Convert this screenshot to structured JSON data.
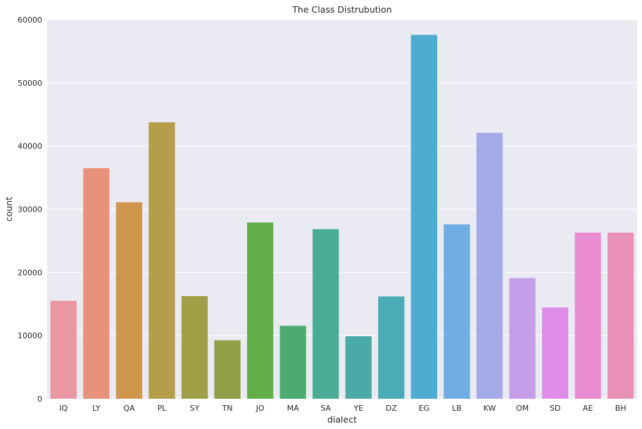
{
  "chart_data": {
    "type": "bar",
    "title": "The Class Distrubution",
    "xlabel": "dialect",
    "ylabel": "count",
    "categories": [
      "IQ",
      "LY",
      "QA",
      "PL",
      "SY",
      "TN",
      "JO",
      "MA",
      "SA",
      "YE",
      "DZ",
      "EG",
      "LB",
      "KW",
      "OM",
      "SD",
      "AE",
      "BH"
    ],
    "values": [
      15500,
      36500,
      31100,
      43750,
      16250,
      9250,
      27900,
      11550,
      26850,
      9900,
      16200,
      57600,
      27600,
      42100,
      19100,
      14450,
      26300,
      26300
    ],
    "colors": [
      "#ea96a3",
      "#e8927c",
      "#d0954d",
      "#b69d4a",
      "#a09f47",
      "#8fa046",
      "#61ae48",
      "#4cab71",
      "#4aac96",
      "#4aaaa8",
      "#4bacb7",
      "#4eacd0",
      "#6fade3",
      "#a4aae8",
      "#c69de8",
      "#e08de9",
      "#ea8cd1",
      "#e991b7"
    ],
    "ylim": [
      0,
      60000
    ],
    "yticks": [
      0,
      10000,
      20000,
      30000,
      40000,
      50000,
      60000
    ],
    "grid": true
  }
}
